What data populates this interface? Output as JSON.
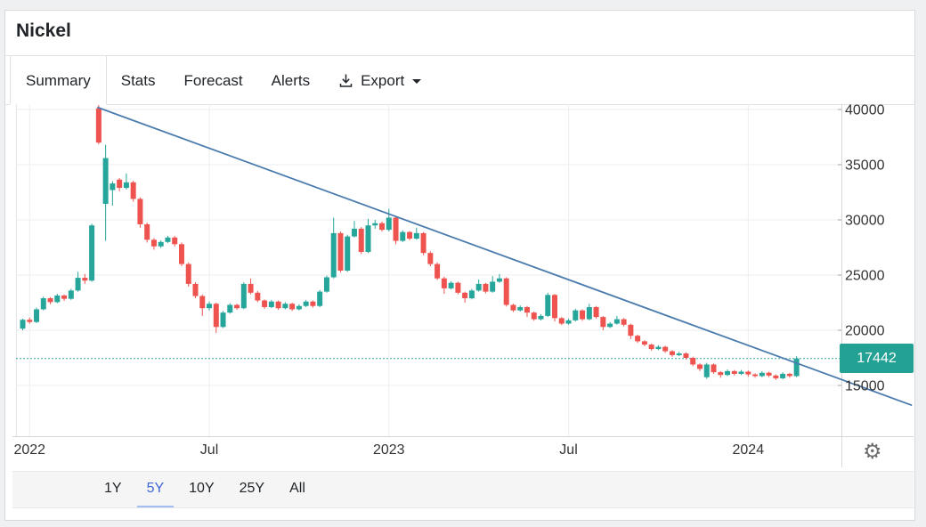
{
  "header": {
    "title": "Nickel"
  },
  "tabs": [
    {
      "label": "Summary",
      "active": true
    },
    {
      "label": "Stats",
      "active": false
    },
    {
      "label": "Forecast",
      "active": false
    },
    {
      "label": "Alerts",
      "active": false
    },
    {
      "label": "Export",
      "active": false,
      "icon": "download",
      "has_caret": true
    }
  ],
  "range_selector": [
    {
      "label": "1Y",
      "active": false
    },
    {
      "label": "5Y",
      "active": true
    },
    {
      "label": "10Y",
      "active": false
    },
    {
      "label": "25Y",
      "active": false
    },
    {
      "label": "All",
      "active": false
    }
  ],
  "controls": {
    "settings_icon": "gear"
  },
  "chart_data": {
    "type": "candlestick",
    "title": "Nickel",
    "interval": "weekly",
    "last_price": 17442,
    "y_ticks": [
      40000,
      35000,
      30000,
      25000,
      20000,
      15000
    ],
    "ylim": [
      13200,
      40500
    ],
    "x_ticks": [
      {
        "label": "2022",
        "week": 1
      },
      {
        "label": "Jul",
        "week": 27
      },
      {
        "label": "2023",
        "week": 53
      },
      {
        "label": "Jul",
        "week": 79
      },
      {
        "label": "2024",
        "week": 105
      }
    ],
    "last_price_line": {
      "price": 17442,
      "style": "dotted"
    },
    "trendline": {
      "start_week": 10.8,
      "start_price": 40200,
      "end_week": 128.7,
      "end_price": 13200
    },
    "colors": {
      "up": "#26a69a",
      "down": "#ef5350",
      "trendline": "#4a7cae",
      "last_price_badge": "#23a195",
      "last_price_line": "#2fa99e",
      "grid": "#ececec",
      "axis_line": "#d4d7da",
      "axis_text": "#333333",
      "active_range": "#3e66d9"
    },
    "candles_ohlc": [
      [
        20150,
        21050,
        20000,
        20950
      ],
      [
        20950,
        21150,
        20600,
        20750
      ],
      [
        20750,
        22050,
        20650,
        21900
      ],
      [
        21900,
        23050,
        21800,
        22900
      ],
      [
        22900,
        23000,
        22350,
        22550
      ],
      [
        22550,
        23300,
        22450,
        23150
      ],
      [
        23150,
        23250,
        22650,
        22850
      ],
      [
        22850,
        23750,
        22750,
        23600
      ],
      [
        23600,
        25300,
        23500,
        24750
      ],
      [
        24750,
        25100,
        24200,
        24500
      ],
      [
        24500,
        29650,
        24400,
        29500
      ],
      [
        40100,
        40400,
        36850,
        37000
      ],
      [
        31450,
        36800,
        28100,
        35600
      ],
      [
        32700,
        33500,
        31300,
        33300
      ],
      [
        33650,
        33800,
        32600,
        32900
      ],
      [
        32900,
        34200,
        32750,
        33400
      ],
      [
        33400,
        33550,
        31650,
        31900
      ],
      [
        31900,
        32050,
        29300,
        29600
      ],
      [
        29600,
        29750,
        27950,
        28200
      ],
      [
        28200,
        28350,
        27300,
        27600
      ],
      [
        27600,
        28150,
        27450,
        28000
      ],
      [
        28000,
        28550,
        27900,
        28400
      ],
      [
        28400,
        28550,
        27600,
        27800
      ],
      [
        27800,
        27950,
        25800,
        26000
      ],
      [
        26000,
        26150,
        23950,
        24200
      ],
      [
        24200,
        24350,
        22900,
        23100
      ],
      [
        23100,
        23250,
        21300,
        22000
      ],
      [
        22000,
        22600,
        21800,
        22400
      ],
      [
        22400,
        22500,
        19750,
        20300
      ],
      [
        20300,
        21750,
        20200,
        21600
      ],
      [
        21600,
        22450,
        21500,
        22300
      ],
      [
        22300,
        22400,
        21850,
        22000
      ],
      [
        22000,
        24350,
        21900,
        24200
      ],
      [
        24200,
        24700,
        23250,
        23400
      ],
      [
        23400,
        23550,
        22550,
        22700
      ],
      [
        22700,
        22800,
        21950,
        22100
      ],
      [
        22100,
        22750,
        22000,
        22600
      ],
      [
        22600,
        22700,
        21850,
        22000
      ],
      [
        22000,
        22550,
        21900,
        22400
      ],
      [
        22400,
        22500,
        21750,
        21900
      ],
      [
        21900,
        22350,
        21800,
        22200
      ],
      [
        22200,
        22750,
        22100,
        22600
      ],
      [
        22600,
        22700,
        22050,
        22200
      ],
      [
        22200,
        23650,
        22100,
        23500
      ],
      [
        23500,
        24950,
        23400,
        24800
      ],
      [
        24800,
        30200,
        24700,
        28800
      ],
      [
        28800,
        28950,
        25250,
        25400
      ],
      [
        25400,
        28650,
        25300,
        28500
      ],
      [
        28500,
        29900,
        28400,
        29200
      ],
      [
        29200,
        29350,
        26900,
        27100
      ],
      [
        27100,
        30100,
        27000,
        29500
      ],
      [
        29500,
        30000,
        29200,
        29700
      ],
      [
        29700,
        29850,
        28950,
        29100
      ],
      [
        29100,
        31000,
        28950,
        30200
      ],
      [
        30200,
        30350,
        27800,
        28100
      ],
      [
        28100,
        29050,
        28000,
        28900
      ],
      [
        28900,
        29000,
        28150,
        28300
      ],
      [
        28300,
        29300,
        28200,
        28800
      ],
      [
        28800,
        28900,
        26800,
        27000
      ],
      [
        27000,
        27150,
        25800,
        26000
      ],
      [
        26000,
        26150,
        24550,
        24700
      ],
      [
        24700,
        24850,
        23300,
        23800
      ],
      [
        23800,
        24450,
        23700,
        24300
      ],
      [
        24300,
        24400,
        23250,
        23400
      ],
      [
        23400,
        23500,
        22500,
        22900
      ],
      [
        22900,
        23750,
        22800,
        23600
      ],
      [
        23600,
        24600,
        23500,
        24200
      ],
      [
        24200,
        24300,
        23350,
        23500
      ],
      [
        23500,
        24900,
        23400,
        24400
      ],
      [
        24400,
        25100,
        24300,
        24700
      ],
      [
        24700,
        24800,
        22150,
        22300
      ],
      [
        22300,
        22400,
        21650,
        21800
      ],
      [
        21800,
        22250,
        21700,
        22100
      ],
      [
        22100,
        22200,
        21200,
        21600
      ],
      [
        21600,
        21700,
        20850,
        21000
      ],
      [
        21000,
        21450,
        20900,
        21300
      ],
      [
        21300,
        23400,
        21200,
        23200
      ],
      [
        23200,
        23300,
        20800,
        21100
      ],
      [
        21100,
        21200,
        20450,
        20600
      ],
      [
        20600,
        21050,
        20500,
        20900
      ],
      [
        20900,
        21950,
        20800,
        21800
      ],
      [
        21800,
        21900,
        20850,
        21000
      ],
      [
        21000,
        22400,
        20900,
        22100
      ],
      [
        22100,
        22200,
        21050,
        21200
      ],
      [
        21200,
        21300,
        20000,
        20300
      ],
      [
        20300,
        20750,
        20200,
        20600
      ],
      [
        20600,
        21300,
        20500,
        21000
      ],
      [
        21000,
        21100,
        20350,
        20500
      ],
      [
        20500,
        20600,
        19200,
        19500
      ],
      [
        19500,
        19600,
        18850,
        19000
      ],
      [
        19000,
        19100,
        18550,
        18700
      ],
      [
        18700,
        18800,
        18150,
        18300
      ],
      [
        18300,
        18650,
        18200,
        18500
      ],
      [
        18500,
        18600,
        17950,
        18100
      ],
      [
        18100,
        18200,
        17600,
        17750
      ],
      [
        17750,
        18050,
        17650,
        17900
      ],
      [
        17900,
        18000,
        17350,
        17500
      ],
      [
        17500,
        17600,
        16750,
        16900
      ],
      [
        16900,
        17000,
        16300,
        16500
      ],
      [
        15750,
        17050,
        15600,
        16900
      ],
      [
        16900,
        17000,
        16050,
        16200
      ],
      [
        16200,
        16300,
        15700,
        15950
      ],
      [
        15950,
        16450,
        15850,
        16300
      ],
      [
        16300,
        16400,
        15900,
        16050
      ],
      [
        16050,
        16400,
        15950,
        16250
      ],
      [
        16250,
        16350,
        15800,
        16000
      ],
      [
        16000,
        16100,
        15700,
        15850
      ],
      [
        15850,
        16300,
        15750,
        16150
      ],
      [
        16150,
        16250,
        15750,
        15900
      ],
      [
        15900,
        16000,
        15500,
        15650
      ],
      [
        15650,
        16200,
        15550,
        16050
      ],
      [
        16050,
        16150,
        15700,
        15850
      ],
      [
        15850,
        17650,
        15750,
        17442
      ]
    ]
  }
}
